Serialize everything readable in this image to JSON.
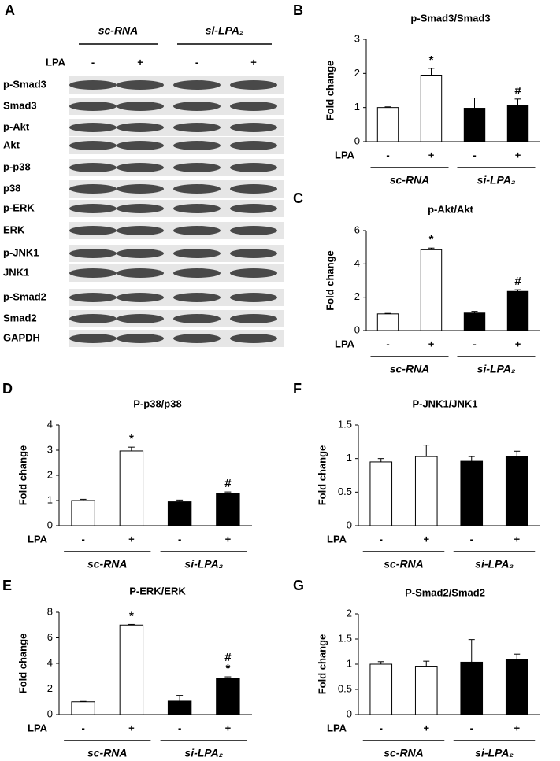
{
  "blot": {
    "panel": "A",
    "groups": [
      "sc-RNA",
      "si-LPA₂"
    ],
    "treatment": "LPA",
    "lanes": [
      "-",
      "+",
      "-",
      "+"
    ],
    "rows": [
      "p-Smad3",
      "Smad3",
      "p-Akt",
      "Akt",
      "p-p38",
      "p38",
      "p-ERK",
      "ERK",
      "p-JNK1",
      "JNK1",
      "p-Smad2",
      "Smad2",
      "GAPDH"
    ]
  },
  "chart_data": [
    {
      "type": "bar",
      "panel": "B",
      "title": "p-Smad3/Smad3",
      "ylabel": "Fold change",
      "row_label": "LPA",
      "categories": [
        "-",
        "+",
        "-",
        "+"
      ],
      "groups": [
        "sc-RNA",
        "si-LPA₂"
      ],
      "values": [
        1,
        1.95,
        0.98,
        1.05
      ],
      "errors": [
        0.02,
        0.2,
        0.3,
        0.2
      ],
      "colors": [
        "#ffffff",
        "#ffffff",
        "#000000",
        "#000000"
      ],
      "markers": [
        [],
        [
          "*"
        ],
        [],
        [
          "#"
        ]
      ],
      "ylim": [
        0,
        3
      ],
      "yticks": [
        0,
        1,
        2,
        3
      ]
    },
    {
      "type": "bar",
      "panel": "C",
      "title": "p-Akt/Akt",
      "ylabel": "Fold change",
      "row_label": "LPA",
      "categories": [
        "-",
        "+",
        "-",
        "+"
      ],
      "groups": [
        "sc-RNA",
        "si-LPA₂"
      ],
      "values": [
        1,
        4.85,
        1.05,
        2.35
      ],
      "errors": [
        0.03,
        0.1,
        0.1,
        0.1
      ],
      "colors": [
        "#ffffff",
        "#ffffff",
        "#000000",
        "#000000"
      ],
      "markers": [
        [],
        [
          "*"
        ],
        [],
        [
          "#"
        ]
      ],
      "ylim": [
        0,
        6
      ],
      "yticks": [
        0,
        2,
        4,
        6
      ]
    },
    {
      "type": "bar",
      "panel": "D",
      "title": "P-p38/p38",
      "ylabel": "Fold change",
      "row_label": "LPA",
      "categories": [
        "-",
        "+",
        "-",
        "+"
      ],
      "groups": [
        "sc-RNA",
        "si-LPA₂"
      ],
      "values": [
        1,
        2.97,
        0.95,
        1.27
      ],
      "errors": [
        0.05,
        0.15,
        0.07,
        0.07
      ],
      "colors": [
        "#ffffff",
        "#ffffff",
        "#000000",
        "#000000"
      ],
      "markers": [
        [],
        [
          "*"
        ],
        [],
        [
          "#"
        ]
      ],
      "ylim": [
        0,
        4
      ],
      "yticks": [
        0,
        1,
        2,
        3,
        4
      ]
    },
    {
      "type": "bar",
      "panel": "E",
      "title": "P-ERK/ERK",
      "ylabel": "Fold change",
      "row_label": "LPA",
      "categories": [
        "-",
        "+",
        "-",
        "+"
      ],
      "groups": [
        "sc-RNA",
        "si-LPA₂"
      ],
      "values": [
        1,
        7.0,
        1.05,
        2.85
      ],
      "errors": [
        0.03,
        0.05,
        0.45,
        0.1
      ],
      "colors": [
        "#ffffff",
        "#ffffff",
        "#000000",
        "#000000"
      ],
      "markers": [
        [],
        [
          "*"
        ],
        [],
        [
          "#",
          "*"
        ]
      ],
      "ylim": [
        0,
        8
      ],
      "yticks": [
        0,
        2,
        4,
        6,
        8
      ]
    },
    {
      "type": "bar",
      "panel": "F",
      "title": "P-JNK1/JNK1",
      "ylabel": "Fold change",
      "row_label": "LPA",
      "categories": [
        "-",
        "+",
        "-",
        "+"
      ],
      "groups": [
        "sc-RNA",
        "si-LPA₂"
      ],
      "values": [
        0.95,
        1.03,
        0.96,
        1.03
      ],
      "errors": [
        0.05,
        0.17,
        0.07,
        0.08
      ],
      "colors": [
        "#ffffff",
        "#ffffff",
        "#000000",
        "#000000"
      ],
      "markers": [
        [],
        [],
        [],
        []
      ],
      "ylim": [
        0,
        1.5
      ],
      "yticks": [
        0,
        0.5,
        1,
        1.5
      ]
    },
    {
      "type": "bar",
      "panel": "G",
      "title": "P-Smad2/Smad2",
      "ylabel": "Fold change",
      "row_label": "LPA",
      "categories": [
        "-",
        "+",
        "-",
        "+"
      ],
      "groups": [
        "sc-RNA",
        "si-LPA₂"
      ],
      "values": [
        1.0,
        0.96,
        1.04,
        1.1
      ],
      "errors": [
        0.05,
        0.1,
        0.45,
        0.1
      ],
      "colors": [
        "#ffffff",
        "#ffffff",
        "#000000",
        "#000000"
      ],
      "markers": [
        [],
        [],
        [],
        []
      ],
      "ylim": [
        0,
        2
      ],
      "yticks": [
        0,
        0.5,
        1,
        1.5,
        2
      ]
    }
  ]
}
